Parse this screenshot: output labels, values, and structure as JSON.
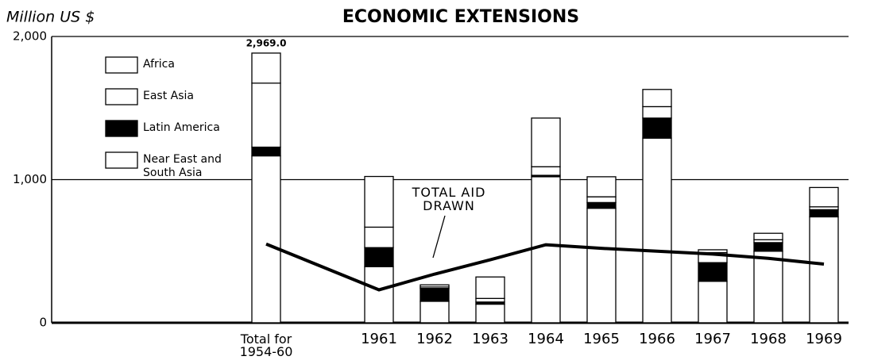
{
  "chart_data": {
    "type": "bar",
    "stacked": true,
    "title": "ECONOMIC EXTENSIONS",
    "y_label": "Million US $",
    "categories": [
      "Total for 1954-60",
      "1961",
      "1962",
      "1963",
      "1964",
      "1965",
      "1966",
      "1967",
      "1968",
      "1969"
    ],
    "series": [
      {
        "name": "Near East and South Asia",
        "color": "#ffffff",
        "values": [
          1166,
          392,
          150,
          130,
          1020,
          800,
          1290,
          290,
          500,
          740
        ]
      },
      {
        "name": "Latin America",
        "color": "#000000",
        "values": [
          61,
          133,
          90,
          15,
          10,
          40,
          140,
          130,
          60,
          50
        ]
      },
      {
        "name": "East Asia",
        "color": "#ffffff",
        "values": [
          447,
          143,
          10,
          25,
          60,
          40,
          80,
          70,
          20,
          20
        ]
      },
      {
        "name": "Africa",
        "color": "#ffffff",
        "values": [
          210,
          354,
          15,
          150,
          340,
          140,
          120,
          20,
          45,
          135
        ]
      },
      {
        "name": "TOTAL AID DRAWN",
        "type": "line",
        "color": "#000000",
        "values": [
          550,
          230,
          340,
          440,
          545,
          520,
          500,
          480,
          450,
          410
        ]
      }
    ],
    "annotations": [
      "2,969.0"
    ],
    "ylim": [
      0,
      2000
    ],
    "yticks": [
      0,
      {
        "value": 1000,
        "label": "1,000"
      },
      {
        "value": 2000,
        "label": "2,000"
      }
    ],
    "grid": true,
    "legend": "upper left"
  }
}
